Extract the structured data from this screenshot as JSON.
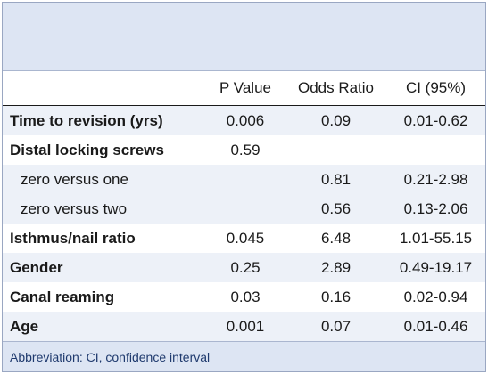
{
  "table": {
    "headers": [
      "",
      "P Value",
      "Odds Ratio",
      "CI (95%)"
    ],
    "rows": [
      {
        "label": "Time to revision (yrs)",
        "p": "0.006",
        "or": "0.09",
        "ci": "0.01-0.62"
      },
      {
        "label": "Distal locking screws",
        "p": "0.59",
        "or": "",
        "ci": ""
      },
      {
        "label": "zero versus one",
        "p": "",
        "or": "0.81",
        "ci": "0.21-2.98"
      },
      {
        "label": "zero versus two",
        "p": "",
        "or": "0.56",
        "ci": "0.13-2.06"
      },
      {
        "label": "Isthmus/nail ratio",
        "p": "0.045",
        "or": "6.48",
        "ci": "1.01-55.15"
      },
      {
        "label": "Gender",
        "p": "0.25",
        "or": "2.89",
        "ci": "0.49-19.17"
      },
      {
        "label": "Canal reaming",
        "p": "0.03",
        "or": "0.16",
        "ci": "0.02-0.94"
      },
      {
        "label": "Age",
        "p": "0.001",
        "or": "0.07",
        "ci": "0.01-0.46"
      }
    ],
    "footnote": "Abbreviation: CI, confidence interval"
  },
  "colors": {
    "band": "#dde5f3",
    "shaded_row": "#edf1f8",
    "footnote_text": "#1f3a6e"
  }
}
